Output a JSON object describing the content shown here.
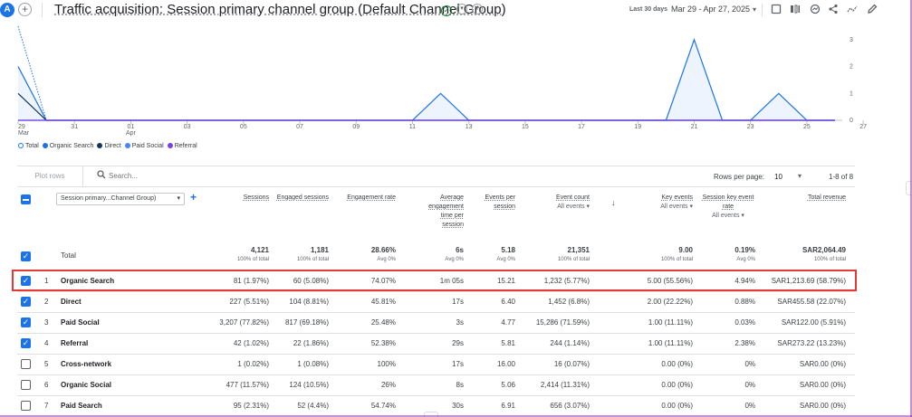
{
  "header": {
    "avatar_letter": "A",
    "add_symbol": "+",
    "title": "Traffic acquisition: Session primary channel group (Default Channel Group)",
    "status_icon": "check-circle-icon",
    "date_label": "Last 30 days",
    "date_range": "Mar 29 - Apr 27, 2025",
    "icons": [
      "comment-icon",
      "compare-icon",
      "insights-icon",
      "share-icon",
      "trend-icon",
      "edit-icon"
    ]
  },
  "chart_data": {
    "type": "line",
    "x_ticks": [
      {
        "top": "29",
        "bottom": "Mar"
      },
      {
        "top": "31",
        "bottom": ""
      },
      {
        "top": "01",
        "bottom": "Apr"
      },
      {
        "top": "03",
        "bottom": ""
      },
      {
        "top": "05",
        "bottom": ""
      },
      {
        "top": "07",
        "bottom": ""
      },
      {
        "top": "09",
        "bottom": ""
      },
      {
        "top": "11",
        "bottom": ""
      },
      {
        "top": "13",
        "bottom": ""
      },
      {
        "top": "15",
        "bottom": ""
      },
      {
        "top": "17",
        "bottom": ""
      },
      {
        "top": "19",
        "bottom": ""
      },
      {
        "top": "21",
        "bottom": ""
      },
      {
        "top": "23",
        "bottom": ""
      },
      {
        "top": "25",
        "bottom": ""
      },
      {
        "top": "27",
        "bottom": ""
      }
    ],
    "y_ticks": [
      "0",
      "1",
      "2",
      "3"
    ],
    "ylim": [
      0,
      3.5
    ],
    "x_dates": [
      "Mar 29",
      "Mar 30",
      "Mar 31",
      "Apr 1",
      "Apr 2",
      "Apr 3",
      "Apr 4",
      "Apr 5",
      "Apr 6",
      "Apr 7",
      "Apr 8",
      "Apr 9",
      "Apr 10",
      "Apr 11",
      "Apr 12",
      "Apr 13",
      "Apr 14",
      "Apr 15",
      "Apr 16",
      "Apr 17",
      "Apr 18",
      "Apr 19",
      "Apr 20",
      "Apr 21",
      "Apr 22",
      "Apr 23",
      "Apr 24",
      "Apr 25",
      "Apr 26",
      "Apr 27"
    ],
    "series": [
      {
        "name": "Total",
        "color": "#1a73e8",
        "style": "dotted",
        "values": [
          3.5,
          0,
          0,
          0,
          0,
          0,
          0,
          0,
          0,
          0,
          0,
          0,
          0,
          0,
          0,
          0,
          0,
          0,
          0,
          0,
          0,
          0,
          0,
          0,
          0,
          0,
          0,
          0,
          0,
          0
        ]
      },
      {
        "name": "Organic Search",
        "color": "#1a73e8",
        "style": "solid",
        "values": [
          2,
          0,
          0,
          0,
          0,
          0,
          0,
          0,
          0,
          0,
          0,
          0,
          0,
          0,
          0,
          1,
          0,
          0,
          0,
          0,
          0,
          0,
          0,
          0,
          3,
          0,
          0,
          1,
          0,
          0
        ]
      },
      {
        "name": "Direct",
        "color": "#12355b",
        "style": "solid",
        "values": [
          1,
          0,
          0,
          0,
          0,
          0,
          0,
          0,
          0,
          0,
          0,
          0,
          0,
          0,
          0,
          0,
          0,
          0,
          0,
          0,
          0,
          0,
          0,
          0,
          0,
          0,
          0,
          0,
          0,
          0
        ]
      },
      {
        "name": "Paid Social",
        "color": "#4285f4",
        "style": "solid",
        "values": [
          0,
          0,
          0,
          0,
          0,
          0,
          0,
          0,
          0,
          0,
          0,
          0,
          0,
          0,
          0,
          0,
          0,
          0,
          0,
          0,
          0,
          0,
          0,
          0,
          0,
          0,
          0,
          0,
          0,
          0
        ]
      },
      {
        "name": "Referral",
        "color": "#7b3fe4",
        "style": "solid",
        "values": [
          0,
          0,
          0,
          0,
          0,
          0,
          0,
          0,
          0,
          0,
          0,
          0,
          0,
          0,
          0,
          0,
          0,
          0,
          0,
          0,
          0,
          0,
          0,
          0,
          0,
          0,
          0,
          0,
          0,
          0
        ]
      }
    ]
  },
  "legend": [
    {
      "label": "Total",
      "color": "#1a73e8",
      "hollow": true
    },
    {
      "label": "Organic Search",
      "color": "#1a73e8",
      "hollow": false
    },
    {
      "label": "Direct",
      "color": "#12355b",
      "hollow": false
    },
    {
      "label": "Paid Social",
      "color": "#4285f4",
      "hollow": false
    },
    {
      "label": "Referral",
      "color": "#7b3fe4",
      "hollow": false
    }
  ],
  "toolbar": {
    "plot_rows": "Plot rows",
    "search_placeholder": "Search...",
    "rows_per_page_label": "Rows per page:",
    "rows_per_page": "10",
    "pager": "1-8 of 8"
  },
  "table": {
    "dimension_select": "Session primary...Channel Group)",
    "columns": [
      {
        "label": "Sessions",
        "sub": ""
      },
      {
        "label": "Engaged sessions",
        "sub": ""
      },
      {
        "label": "Engagement rate",
        "sub": ""
      },
      {
        "label": "Average engagement time per session",
        "sub": ""
      },
      {
        "label": "Events per session",
        "sub": ""
      },
      {
        "label": "Event count",
        "sub": "All events"
      },
      {
        "label": "Key events",
        "sub": "All events"
      },
      {
        "label": "Session key event rate",
        "sub": "All events"
      },
      {
        "label": "Total revenue",
        "sub": ""
      }
    ],
    "total_label": "Total",
    "totals": [
      "4,121",
      "1,181",
      "28.66%",
      "6s",
      "5.18",
      "21,351",
      "9.00",
      "0.19%",
      "SAR2,064.49"
    ],
    "totals_sub": [
      "100% of total",
      "100% of total",
      "Avg 0%",
      "Avg 0%",
      "Avg 0%",
      "100% of total",
      "100% of total",
      "Avg 0%",
      "100% of total"
    ],
    "rows": [
      {
        "idx": "1",
        "name": "Organic Search",
        "checked": true,
        "values": [
          "81 (1.97%)",
          "60 (5.08%)",
          "74.07%",
          "1m 05s",
          "15.21",
          "1,232 (5.77%)",
          "5.00 (55.56%)",
          "4.94%",
          "SAR1,213.69 (58.79%)"
        ]
      },
      {
        "idx": "2",
        "name": "Direct",
        "checked": true,
        "values": [
          "227 (5.51%)",
          "104 (8.81%)",
          "45.81%",
          "17s",
          "6.40",
          "1,452 (6.8%)",
          "2.00 (22.22%)",
          "0.88%",
          "SAR455.58 (22.07%)"
        ]
      },
      {
        "idx": "3",
        "name": "Paid Social",
        "checked": true,
        "values": [
          "3,207 (77.82%)",
          "817 (69.18%)",
          "25.48%",
          "3s",
          "4.77",
          "15,286 (71.59%)",
          "1.00 (11.11%)",
          "0.03%",
          "SAR122.00 (5.91%)"
        ]
      },
      {
        "idx": "4",
        "name": "Referral",
        "checked": true,
        "values": [
          "42 (1.02%)",
          "22 (1.86%)",
          "52.38%",
          "29s",
          "5.81",
          "244 (1.14%)",
          "1.00 (11.11%)",
          "2.38%",
          "SAR273.22 (13.23%)"
        ]
      },
      {
        "idx": "5",
        "name": "Cross-network",
        "checked": false,
        "values": [
          "1 (0.02%)",
          "1 (0.08%)",
          "100%",
          "17s",
          "16.00",
          "16 (0.07%)",
          "0.00 (0%)",
          "0%",
          "SAR0.00 (0%)"
        ]
      },
      {
        "idx": "6",
        "name": "Organic Social",
        "checked": false,
        "values": [
          "477 (11.57%)",
          "124 (10.5%)",
          "26%",
          "8s",
          "5.06",
          "2,414 (11.31%)",
          "0.00 (0%)",
          "0%",
          "SAR0.00 (0%)"
        ]
      },
      {
        "idx": "7",
        "name": "Paid Search",
        "checked": false,
        "values": [
          "95 (2.31%)",
          "52 (4.4%)",
          "54.74%",
          "30s",
          "6.91",
          "656 (3.07%)",
          "0.00 (0%)",
          "0%",
          "SAR0.00 (0%)"
        ]
      }
    ]
  }
}
